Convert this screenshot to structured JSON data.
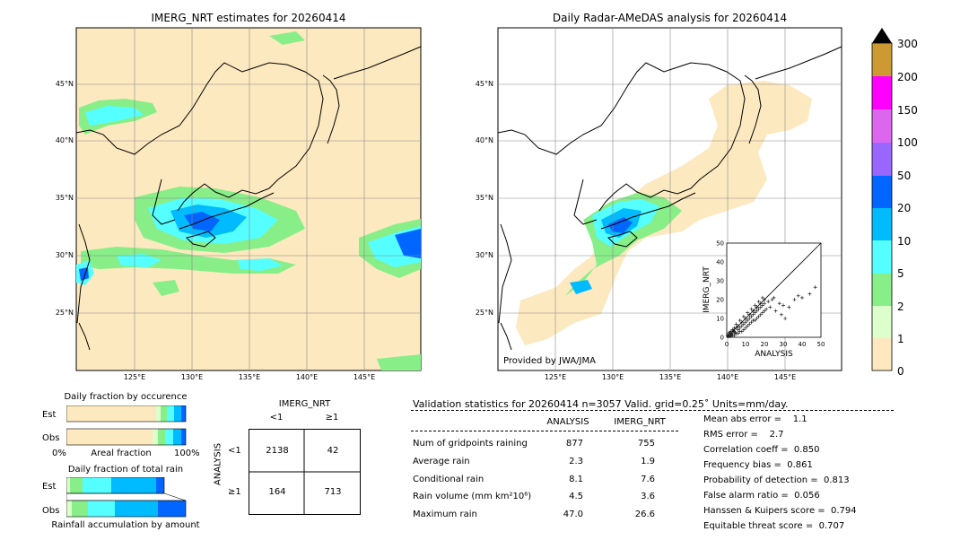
{
  "left_map": {
    "title": "IMERG_NRT estimates for 20260414",
    "lat_labels": [
      "45°N",
      "40°N",
      "35°N",
      "30°N",
      "25°N"
    ],
    "lon_labels": [
      "125°E",
      "130°E",
      "135°E",
      "140°E",
      "145°E"
    ]
  },
  "right_map": {
    "title": "Daily Radar-AMeDAS analysis for 20260414",
    "lat_labels": [
      "45°N",
      "40°N",
      "35°N",
      "30°N",
      "25°N"
    ],
    "lon_labels": [
      "125°E",
      "130°E",
      "135°E",
      "140°E",
      "145°E"
    ],
    "credit": "Provided by JWA/JMA"
  },
  "colorbar": {
    "levels": [
      "300",
      "200",
      "150",
      "100",
      "50",
      "20",
      "10",
      "5",
      "2",
      "1",
      "0"
    ],
    "colors": [
      "#cc9933",
      "#ff00ff",
      "#dd66ee",
      "#9966ff",
      "#0066ff",
      "#00bbff",
      "#55ffff",
      "#88ee88",
      "#ddffcc",
      "#ffe8bf"
    ]
  },
  "occurrence_chart": {
    "title": "Daily fraction by occurence",
    "rows": [
      "Est",
      "Obs"
    ],
    "xlabel_left": "0%",
    "xlabel_mid": "Areal fraction",
    "xlabel_right": "100%"
  },
  "amount_chart": {
    "title": "Daily fraction of total rain",
    "rows": [
      "Est",
      "Obs"
    ],
    "xlabel": "Rainfall accumulation by amount"
  },
  "contingency": {
    "title": "IMERG_NRT",
    "col_labels": [
      "<1",
      "≥1"
    ],
    "row_axis": "ANALYSIS",
    "row_labels": [
      "<1",
      "≥1"
    ],
    "cells": [
      "2138",
      "42",
      "164",
      "713"
    ]
  },
  "validation": {
    "header": "Validation statistics for 20260414  n=3057 Valid. grid=0.25˚ Units=mm/day.",
    "col_analysis": "ANALYSIS",
    "col_imerg": "IMERG_NRT",
    "rows": [
      {
        "label": "Num of gridpoints raining",
        "analysis": "877",
        "imerg": "755"
      },
      {
        "label": "Average rain",
        "analysis": "2.3",
        "imerg": "1.9"
      },
      {
        "label": "Conditional rain",
        "analysis": "8.1",
        "imerg": "7.6"
      },
      {
        "label": "Rain volume (mm km²10⁶)",
        "analysis": "4.5",
        "imerg": "3.6"
      },
      {
        "label": "Maximum rain",
        "analysis": "47.0",
        "imerg": "26.6"
      }
    ],
    "scores": [
      "Mean abs error =    1.1",
      "RMS error =    2.7",
      "Correlation coeff =  0.850",
      "Frequency bias =  0.861",
      "Probability of detection =  0.813",
      "False alarm ratio =  0.056",
      "Hanssen & Kuipers score =  0.794",
      "Equitable threat score =  0.707"
    ]
  },
  "chart_data": {
    "type": "scatter",
    "xlabel": "ANALYSIS",
    "ylabel": "IMERG_NRT",
    "xlim": [
      0,
      50
    ],
    "ylim": [
      0,
      50
    ],
    "ticks": [
      0,
      10,
      20,
      30,
      40,
      50
    ],
    "points": [
      [
        1,
        0.5
      ],
      [
        2,
        1
      ],
      [
        3,
        2
      ],
      [
        4,
        3
      ],
      [
        5,
        2
      ],
      [
        6,
        4
      ],
      [
        7,
        5
      ],
      [
        8,
        6
      ],
      [
        9,
        7
      ],
      [
        10,
        8
      ],
      [
        11,
        9
      ],
      [
        12,
        10
      ],
      [
        13,
        11
      ],
      [
        14,
        12
      ],
      [
        15,
        13
      ],
      [
        16,
        14
      ],
      [
        17,
        15
      ],
      [
        18,
        16
      ],
      [
        19,
        17
      ],
      [
        20,
        18
      ],
      [
        22,
        19
      ],
      [
        24,
        20
      ],
      [
        25,
        21
      ],
      [
        21,
        15
      ],
      [
        2,
        3
      ],
      [
        3,
        1
      ],
      [
        4,
        5
      ],
      [
        6,
        2
      ],
      [
        8,
        3
      ],
      [
        10,
        5
      ],
      [
        12,
        7
      ],
      [
        14,
        9
      ],
      [
        16,
        10
      ],
      [
        18,
        12
      ],
      [
        20,
        14
      ],
      [
        5,
        7
      ],
      [
        7,
        9
      ],
      [
        9,
        11
      ],
      [
        11,
        13
      ],
      [
        13,
        15
      ],
      [
        15,
        17
      ],
      [
        17,
        19
      ],
      [
        19,
        21
      ],
      [
        23,
        16
      ],
      [
        26,
        14
      ],
      [
        28,
        18
      ],
      [
        30,
        17
      ],
      [
        33,
        16
      ],
      [
        36,
        20
      ],
      [
        38,
        22
      ],
      [
        40,
        21
      ],
      [
        44,
        23
      ],
      [
        47,
        26.6
      ],
      [
        29,
        12
      ],
      [
        31,
        10
      ],
      [
        1,
        2
      ],
      [
        2,
        0.5
      ],
      [
        3,
        4
      ],
      [
        4,
        1
      ],
      [
        5,
        5
      ],
      [
        6,
        6
      ],
      [
        7,
        3
      ],
      [
        8,
        8
      ],
      [
        9,
        4
      ],
      [
        10,
        10
      ],
      [
        11,
        6
      ],
      [
        12,
        12
      ],
      [
        13,
        8
      ],
      [
        14,
        14
      ],
      [
        15,
        9
      ],
      [
        16,
        16
      ],
      [
        17,
        11
      ],
      [
        18,
        18
      ],
      [
        19,
        13
      ],
      [
        20,
        20
      ],
      [
        0.5,
        1
      ],
      [
        1.5,
        2.5
      ],
      [
        2.5,
        1.5
      ],
      [
        3.5,
        3.5
      ],
      [
        4.5,
        2.5
      ]
    ]
  }
}
